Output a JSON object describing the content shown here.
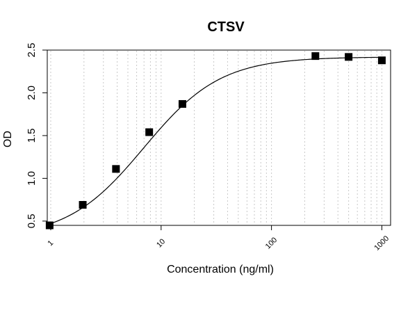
{
  "chart_data": {
    "type": "scatter",
    "title": "CTSV",
    "xlabel": "Concentration (ng/ml)",
    "ylabel": "OD",
    "x_scale": "log",
    "xlim": [
      0.93,
      1200
    ],
    "ylim": [
      0.45,
      2.5
    ],
    "x_ticks": [
      1,
      10,
      100,
      1000
    ],
    "x_tick_labels": [
      "1",
      "10",
      "100",
      "1000"
    ],
    "y_ticks": [
      0.5,
      1.0,
      1.5,
      2.0,
      2.5
    ],
    "y_tick_labels": [
      "0.5",
      "1.0",
      "1.5",
      "2.0",
      "2.5"
    ],
    "grid": true,
    "series": [
      {
        "type": "scatter",
        "x": [
          0.977,
          1.95,
          3.9,
          7.8,
          15.6,
          250,
          500,
          1000
        ],
        "y": [
          0.45,
          0.69,
          1.11,
          1.54,
          1.87,
          2.43,
          2.42,
          2.38
        ]
      }
    ],
    "fit_curve": {
      "type": "line",
      "model": "4PL",
      "bottom": 0.3,
      "top": 2.42,
      "ec50": 7.0,
      "hill": 1.25
    }
  }
}
